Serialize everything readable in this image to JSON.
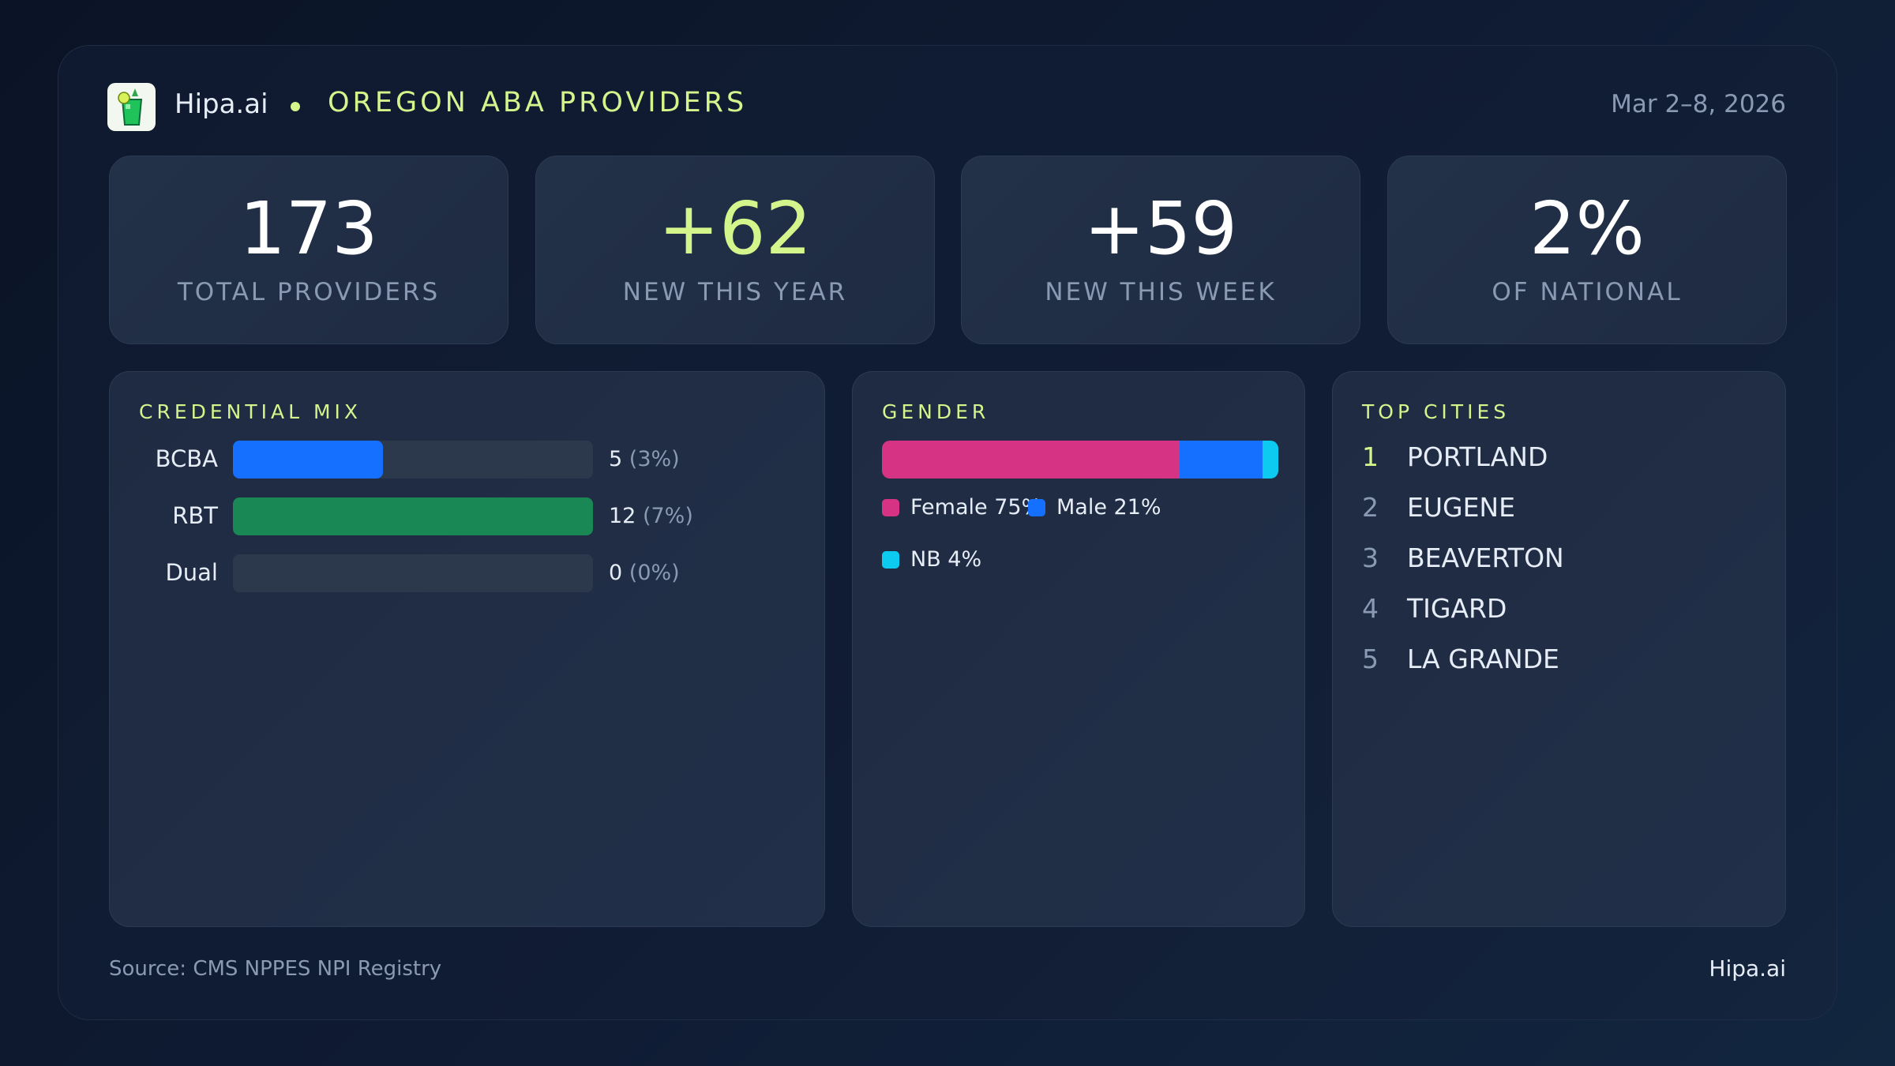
{
  "header": {
    "brand": "Hipa.ai",
    "title": "OREGON ABA PROVIDERS",
    "date_range": "Mar 2–8, 2026",
    "logo_icon": "drink-glass-icon"
  },
  "stats": [
    {
      "value": "173",
      "label": "TOTAL PROVIDERS",
      "accent": false
    },
    {
      "value": "+62",
      "label": "NEW THIS YEAR",
      "accent": true
    },
    {
      "value": "+59",
      "label": "NEW THIS WEEK",
      "accent": false
    },
    {
      "value": "2%",
      "label": "OF NATIONAL",
      "accent": false
    }
  ],
  "credential_mix": {
    "title": "CREDENTIAL MIX",
    "rows": [
      {
        "label": "BCBA",
        "count": "5",
        "pct": "(3%)",
        "value": 5,
        "color": "#1570ff"
      },
      {
        "label": "RBT",
        "count": "12",
        "pct": "(7%)",
        "value": 12,
        "color": "#1a8855"
      },
      {
        "label": "Dual",
        "count": "0",
        "pct": "(0%)",
        "value": 0,
        "color": "#1570ff"
      }
    ]
  },
  "gender": {
    "title": "GENDER",
    "segments": [
      {
        "label": "Female 75%",
        "value": 75,
        "color": "#d63384"
      },
      {
        "label": "Male 21%",
        "value": 21,
        "color": "#1570ff"
      },
      {
        "label": "NB 4%",
        "value": 4,
        "color": "#0dcaf0"
      }
    ]
  },
  "top_cities": {
    "title": "TOP CITIES",
    "items": [
      {
        "rank": "1",
        "name": "PORTLAND"
      },
      {
        "rank": "2",
        "name": "EUGENE"
      },
      {
        "rank": "3",
        "name": "BEAVERTON"
      },
      {
        "rank": "4",
        "name": "TIGARD"
      },
      {
        "rank": "5",
        "name": "LA GRANDE"
      }
    ]
  },
  "footer": {
    "source": "Source: CMS NPPES NPI Registry",
    "brand": "Hipa.ai"
  },
  "colors": {
    "accent": "#d4f58c"
  }
}
